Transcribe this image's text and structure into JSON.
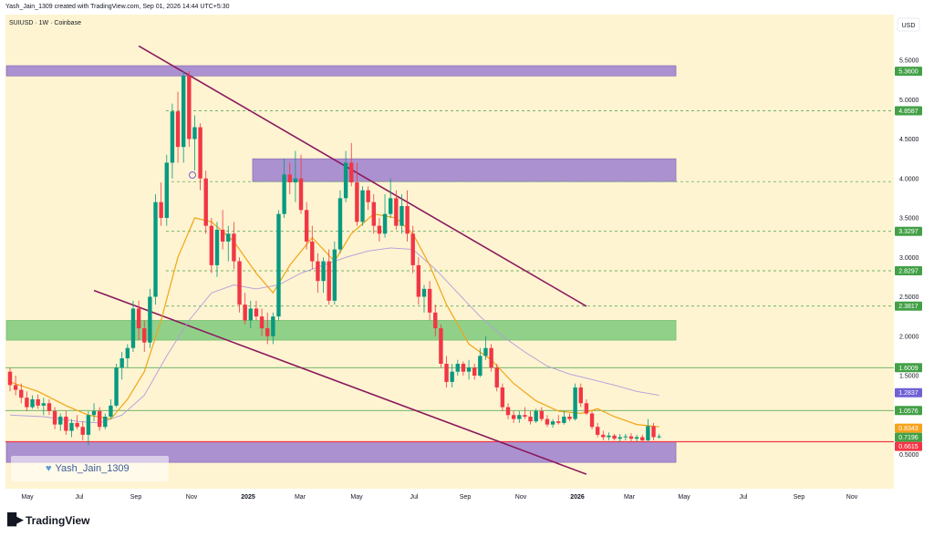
{
  "caption": "Yash_Jain_1309 created with TradingView.com, Sep 01, 2026 14:44 UTC+5:30",
  "brand": {
    "name": "TradingView"
  },
  "watermark": {
    "text": "Yash_Jain_1309"
  },
  "colors": {
    "background": "#fef4d1",
    "bull": "#089981",
    "bear": "#f23645",
    "zone_purple": "#9c7fcf",
    "zone_green": "#7dc97d",
    "channel": "#8b1a5e",
    "ema_orange": "#f2a516",
    "ma_purple": "#b39ddb",
    "level_green": "#43a047",
    "price_blue": "#6f61d4",
    "price_orange": "#f7a21b",
    "price_red": "#f23645",
    "gray_label": "#7f7f7f"
  },
  "chart_data": {
    "type": "candlestick",
    "symbol_label": "SUIUSD · 1W · Coinbase",
    "currency": "USD",
    "y_axis": {
      "ticks": [
        "5.5000",
        "5.0000",
        "4.5000",
        "4.0000",
        "3.5000",
        "3.0000",
        "2.5000",
        "2.0000",
        "1.5000",
        "0.5000"
      ],
      "ylim": [
        0.2,
        5.8
      ]
    },
    "x_axis": {
      "ticks": [
        {
          "label": "May",
          "bold": false
        },
        {
          "label": "Jul",
          "bold": false
        },
        {
          "label": "Sep",
          "bold": false
        },
        {
          "label": "Nov",
          "bold": false
        },
        {
          "label": "2025",
          "bold": true
        },
        {
          "label": "Mar",
          "bold": false
        },
        {
          "label": "May",
          "bold": false
        },
        {
          "label": "Jul",
          "bold": false
        },
        {
          "label": "Sep",
          "bold": false
        },
        {
          "label": "Nov",
          "bold": false
        },
        {
          "label": "2026",
          "bold": true
        },
        {
          "label": "Mar",
          "bold": false
        },
        {
          "label": "May",
          "bold": false
        },
        {
          "label": "Jul",
          "bold": false
        },
        {
          "label": "Sep",
          "bold": false
        },
        {
          "label": "Nov",
          "bold": false
        }
      ]
    },
    "price_labels": [
      {
        "value": 5.36,
        "label": "5.3600",
        "style": "green"
      },
      {
        "value": 4.8587,
        "label": "4.8587",
        "style": "green"
      },
      {
        "value": 3.3297,
        "label": "3.3297",
        "style": "green"
      },
      {
        "value": 2.8297,
        "label": "2.8297",
        "style": "green"
      },
      {
        "value": 2.3817,
        "label": "2.3817",
        "style": "green"
      },
      {
        "value": 1.6009,
        "label": "1.6009",
        "style": "green"
      },
      {
        "value": 1.2837,
        "label": "1.2837",
        "style": "blue"
      },
      {
        "value": 1.0576,
        "label": "1.0576",
        "style": "green"
      },
      {
        "value": 0.8343,
        "label": "0.8343",
        "style": "orange"
      },
      {
        "value": 0.7196,
        "label": "0.7196",
        "style": "green"
      },
      {
        "value": 0.6615,
        "label": "0.6615",
        "style": "red"
      }
    ],
    "zones": [
      {
        "kind": "purple",
        "from": 5.3,
        "to": 5.43,
        "start_week": 0,
        "end_week": 119
      },
      {
        "kind": "purple",
        "from": 3.96,
        "to": 4.25,
        "start_week": 44,
        "end_week": 119
      },
      {
        "kind": "green",
        "from": 1.95,
        "to": 2.2,
        "start_week": 0,
        "end_week": 119
      },
      {
        "kind": "purple",
        "from": 0.4,
        "to": 0.66,
        "start_week": 0,
        "end_week": 119
      }
    ],
    "dashed_levels": [
      4.8587,
      3.96,
      3.3297,
      2.8297,
      2.3817
    ],
    "solid_levels": [
      {
        "value": 1.6009,
        "color": "green"
      },
      {
        "value": 1.0576,
        "color": "green"
      },
      {
        "value": 0.6615,
        "color": "red"
      }
    ],
    "channel_lines": [
      {
        "from": {
          "week": 23,
          "price": 5.68
        },
        "to": {
          "week": 103,
          "price": 2.38
        }
      },
      {
        "from": {
          "week": 15,
          "price": 2.58
        },
        "to": {
          "week": 103,
          "price": 0.25
        }
      }
    ],
    "ohlc": [
      [
        1.55,
        1.6,
        1.3,
        1.38
      ],
      [
        1.38,
        1.5,
        1.25,
        1.32
      ],
      [
        1.32,
        1.4,
        1.15,
        1.22
      ],
      [
        1.22,
        1.3,
        1.05,
        1.1
      ],
      [
        1.1,
        1.25,
        1.08,
        1.2
      ],
      [
        1.2,
        1.26,
        1.08,
        1.12
      ],
      [
        1.12,
        1.22,
        1.0,
        1.15
      ],
      [
        1.15,
        1.2,
        1.0,
        1.05
      ],
      [
        1.05,
        1.1,
        0.82,
        0.88
      ],
      [
        0.88,
        1.02,
        0.8,
        0.98
      ],
      [
        0.98,
        1.05,
        0.75,
        0.8
      ],
      [
        0.8,
        0.95,
        0.72,
        0.9
      ],
      [
        0.9,
        1.0,
        0.82,
        0.85
      ],
      [
        0.85,
        0.92,
        0.68,
        0.75
      ],
      [
        0.75,
        1.05,
        0.62,
        1.0
      ],
      [
        1.0,
        1.15,
        0.92,
        1.05
      ],
      [
        1.05,
        1.1,
        0.8,
        0.85
      ],
      [
        0.85,
        1.02,
        0.82,
        0.98
      ],
      [
        0.98,
        1.2,
        0.95,
        1.12
      ],
      [
        1.12,
        1.65,
        1.1,
        1.6
      ],
      [
        1.6,
        1.8,
        1.45,
        1.72
      ],
      [
        1.72,
        1.9,
        1.6,
        1.85
      ],
      [
        1.85,
        2.45,
        1.8,
        2.35
      ],
      [
        2.35,
        2.45,
        1.95,
        2.1
      ],
      [
        2.1,
        2.2,
        1.8,
        1.92
      ],
      [
        1.92,
        2.6,
        1.85,
        2.5
      ],
      [
        2.5,
        3.8,
        2.4,
        3.7
      ],
      [
        3.7,
        3.95,
        3.4,
        3.5
      ],
      [
        3.5,
        4.3,
        3.4,
        4.2
      ],
      [
        4.2,
        4.95,
        4.0,
        4.85
      ],
      [
        4.85,
        5.1,
        4.2,
        4.4
      ],
      [
        4.4,
        5.36,
        4.2,
        5.3
      ],
      [
        5.3,
        5.36,
        4.4,
        4.5
      ],
      [
        4.5,
        4.8,
        4.1,
        4.65
      ],
      [
        4.65,
        4.7,
        3.85,
        4.0
      ],
      [
        4.0,
        4.1,
        3.3,
        3.4
      ],
      [
        3.4,
        3.5,
        2.8,
        2.9
      ],
      [
        2.9,
        3.45,
        2.75,
        3.35
      ],
      [
        3.35,
        3.6,
        3.1,
        3.2
      ],
      [
        3.2,
        3.4,
        2.95,
        3.3
      ],
      [
        3.3,
        3.45,
        2.85,
        2.95
      ],
      [
        2.95,
        3.0,
        2.3,
        2.4
      ],
      [
        2.4,
        2.55,
        2.15,
        2.2
      ],
      [
        2.2,
        2.45,
        2.1,
        2.35
      ],
      [
        2.35,
        2.45,
        2.2,
        2.25
      ],
      [
        2.25,
        2.35,
        2.0,
        2.1
      ],
      [
        2.1,
        2.3,
        1.9,
        2.0
      ],
      [
        2.0,
        2.3,
        1.9,
        2.25
      ],
      [
        2.25,
        3.6,
        2.2,
        3.55
      ],
      [
        3.55,
        4.25,
        3.5,
        4.05
      ],
      [
        4.05,
        4.2,
        3.8,
        3.95
      ],
      [
        3.95,
        4.35,
        3.7,
        4.0
      ],
      [
        4.0,
        4.3,
        3.55,
        3.6
      ],
      [
        3.6,
        3.7,
        3.1,
        3.2
      ],
      [
        3.2,
        3.4,
        2.85,
        2.95
      ],
      [
        2.95,
        3.05,
        2.55,
        2.7
      ],
      [
        2.7,
        3.0,
        2.55,
        2.95
      ],
      [
        2.95,
        3.1,
        2.4,
        2.45
      ],
      [
        2.45,
        3.2,
        2.4,
        3.1
      ],
      [
        3.1,
        3.85,
        3.05,
        3.75
      ],
      [
        3.75,
        4.35,
        3.7,
        4.2
      ],
      [
        4.2,
        4.45,
        3.9,
        3.95
      ],
      [
        3.95,
        4.2,
        3.4,
        3.45
      ],
      [
        3.45,
        3.9,
        3.4,
        3.85
      ],
      [
        3.85,
        3.9,
        3.6,
        3.7
      ],
      [
        3.7,
        3.8,
        3.3,
        3.4
      ],
      [
        3.4,
        3.5,
        3.2,
        3.3
      ],
      [
        3.3,
        3.8,
        3.25,
        3.55
      ],
      [
        3.55,
        4.0,
        3.5,
        3.75
      ],
      [
        3.75,
        3.85,
        3.35,
        3.4
      ],
      [
        3.4,
        3.8,
        3.3,
        3.65
      ],
      [
        3.65,
        3.85,
        3.2,
        3.3
      ],
      [
        3.3,
        3.4,
        2.8,
        2.9
      ],
      [
        2.9,
        3.0,
        2.4,
        2.5
      ],
      [
        2.5,
        2.65,
        2.3,
        2.6
      ],
      [
        2.6,
        2.7,
        2.2,
        2.3
      ],
      [
        2.3,
        2.4,
        2.0,
        2.1
      ],
      [
        2.1,
        2.15,
        1.6,
        1.65
      ],
      [
        1.65,
        1.75,
        1.35,
        1.42
      ],
      [
        1.42,
        1.65,
        1.35,
        1.55
      ],
      [
        1.55,
        1.7,
        1.5,
        1.65
      ],
      [
        1.65,
        1.68,
        1.5,
        1.55
      ],
      [
        1.55,
        1.7,
        1.45,
        1.6
      ],
      [
        1.6,
        1.65,
        1.45,
        1.5
      ],
      [
        1.5,
        1.85,
        1.48,
        1.75
      ],
      [
        1.75,
        2.0,
        1.7,
        1.85
      ],
      [
        1.85,
        1.9,
        1.55,
        1.6
      ],
      [
        1.6,
        1.65,
        1.3,
        1.35
      ],
      [
        1.35,
        1.4,
        1.05,
        1.1
      ],
      [
        1.1,
        1.15,
        0.95,
        1.0
      ],
      [
        1.0,
        1.05,
        0.9,
        0.95
      ],
      [
        0.95,
        1.05,
        0.9,
        1.0
      ],
      [
        1.0,
        1.1,
        0.95,
        0.98
      ],
      [
        0.98,
        1.05,
        0.88,
        0.92
      ],
      [
        0.92,
        1.08,
        0.9,
        1.05
      ],
      [
        1.05,
        1.1,
        0.92,
        0.95
      ],
      [
        0.95,
        1.0,
        0.85,
        0.88
      ],
      [
        0.88,
        0.95,
        0.84,
        0.92
      ],
      [
        0.92,
        1.0,
        0.88,
        0.9
      ],
      [
        0.9,
        1.05,
        0.88,
        0.98
      ],
      [
        0.98,
        1.02,
        0.92,
        0.95
      ],
      [
        0.95,
        1.4,
        0.93,
        1.35
      ],
      [
        1.35,
        1.4,
        1.1,
        1.15
      ],
      [
        1.15,
        1.2,
        1.0,
        1.02
      ],
      [
        1.02,
        1.05,
        0.82,
        0.85
      ],
      [
        0.85,
        0.9,
        0.72,
        0.75
      ],
      [
        0.75,
        0.8,
        0.68,
        0.72
      ],
      [
        0.72,
        0.78,
        0.68,
        0.74
      ],
      [
        0.74,
        0.76,
        0.68,
        0.7
      ],
      [
        0.7,
        0.76,
        0.66,
        0.72
      ],
      [
        0.72,
        0.76,
        0.68,
        0.73
      ],
      [
        0.73,
        0.77,
        0.66,
        0.7
      ],
      [
        0.7,
        0.75,
        0.66,
        0.72
      ],
      [
        0.72,
        0.75,
        0.66,
        0.68
      ],
      [
        0.68,
        0.95,
        0.66,
        0.86
      ],
      [
        0.86,
        0.9,
        0.68,
        0.72
      ],
      [
        0.72,
        0.76,
        0.7,
        0.73
      ]
    ],
    "ema_orange": [
      [
        0,
        1.42
      ],
      [
        5,
        1.3
      ],
      [
        10,
        1.12
      ],
      [
        14,
        1.0
      ],
      [
        18,
        0.95
      ],
      [
        21,
        1.2
      ],
      [
        24,
        1.55
      ],
      [
        27,
        2.2
      ],
      [
        30,
        3.0
      ],
      [
        33,
        3.5
      ],
      [
        36,
        3.45
      ],
      [
        40,
        3.2
      ],
      [
        44,
        2.8
      ],
      [
        47,
        2.55
      ],
      [
        50,
        2.9
      ],
      [
        54,
        3.25
      ],
      [
        58,
        2.95
      ],
      [
        61,
        3.3
      ],
      [
        65,
        3.55
      ],
      [
        69,
        3.5
      ],
      [
        72,
        3.3
      ],
      [
        75,
        2.9
      ],
      [
        78,
        2.4
      ],
      [
        82,
        1.9
      ],
      [
        86,
        1.7
      ],
      [
        90,
        1.4
      ],
      [
        94,
        1.18
      ],
      [
        98,
        1.05
      ],
      [
        102,
        1.02
      ],
      [
        105,
        1.08
      ],
      [
        108,
        0.98
      ],
      [
        112,
        0.88
      ],
      [
        116,
        0.85
      ]
    ],
    "ma_purple": [
      [
        0,
        1.0
      ],
      [
        6,
        0.98
      ],
      [
        12,
        0.92
      ],
      [
        16,
        0.9
      ],
      [
        20,
        1.0
      ],
      [
        24,
        1.25
      ],
      [
        28,
        1.75
      ],
      [
        32,
        2.2
      ],
      [
        36,
        2.55
      ],
      [
        40,
        2.65
      ],
      [
        44,
        2.6
      ],
      [
        48,
        2.65
      ],
      [
        52,
        2.8
      ],
      [
        56,
        2.9
      ],
      [
        60,
        3.0
      ],
      [
        64,
        3.08
      ],
      [
        68,
        3.12
      ],
      [
        72,
        3.1
      ],
      [
        76,
        2.85
      ],
      [
        80,
        2.55
      ],
      [
        84,
        2.25
      ],
      [
        88,
        2.0
      ],
      [
        92,
        1.8
      ],
      [
        96,
        1.62
      ],
      [
        100,
        1.52
      ],
      [
        104,
        1.45
      ],
      [
        108,
        1.38
      ],
      [
        112,
        1.3
      ],
      [
        116,
        1.25
      ]
    ]
  }
}
